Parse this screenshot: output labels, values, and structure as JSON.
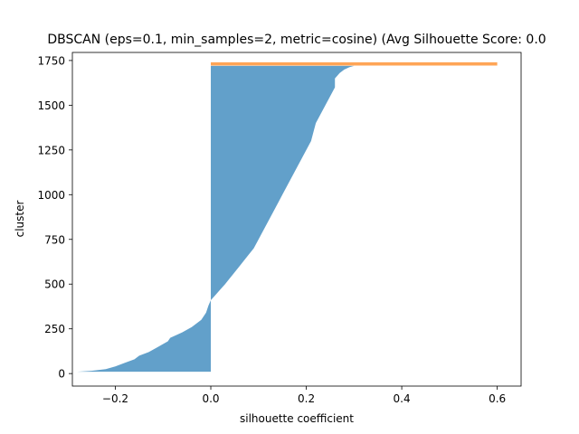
{
  "chart_data": {
    "type": "area",
    "title": "DBSCAN (eps=0.1, min_samples=2, metric=cosine) (Avg Silhouette Score: 0.0",
    "xlabel": "silhouette coefficient",
    "ylabel": "cluster",
    "xlim": [
      -0.29,
      0.65
    ],
    "ylim": [
      -70,
      1795
    ],
    "xticks": [
      -0.2,
      0.0,
      0.2,
      0.4,
      0.6
    ],
    "xtick_labels": [
      "−0.2",
      "0.0",
      "0.2",
      "0.4",
      "0.6"
    ],
    "yticks": [
      0,
      250,
      500,
      750,
      1000,
      1250,
      1500,
      1750
    ],
    "ytick_labels": [
      "0",
      "250",
      "500",
      "750",
      "1000",
      "1250",
      "1500",
      "1750"
    ],
    "grid": false,
    "series": [
      {
        "color": "#1f77b4",
        "opacity": 0.7,
        "y_range": [
          10,
          1720
        ],
        "profile_y": [
          10,
          15,
          25,
          40,
          60,
          80,
          100,
          120,
          150,
          180,
          200,
          230,
          260,
          300,
          340,
          380,
          410,
          440,
          470,
          500,
          550,
          600,
          650,
          700,
          750,
          800,
          850,
          900,
          950,
          1000,
          1100,
          1200,
          1250,
          1300,
          1350,
          1400,
          1450,
          1500,
          1550,
          1600,
          1650,
          1680,
          1700,
          1712,
          1720
        ],
        "profile_x": [
          -0.28,
          -0.25,
          -0.22,
          -0.2,
          -0.18,
          -0.16,
          -0.15,
          -0.13,
          -0.11,
          -0.09,
          -0.085,
          -0.06,
          -0.04,
          -0.02,
          -0.01,
          -0.005,
          0.0,
          0.01,
          0.02,
          0.03,
          0.045,
          0.06,
          0.075,
          0.09,
          0.1,
          0.11,
          0.12,
          0.13,
          0.14,
          0.15,
          0.17,
          0.19,
          0.2,
          0.21,
          0.215,
          0.22,
          0.23,
          0.24,
          0.25,
          0.26,
          0.26,
          0.27,
          0.28,
          0.29,
          0.3
        ]
      },
      {
        "color": "#ff7f0e",
        "opacity": 0.7,
        "y_range": [
          1722,
          1740
        ],
        "profile_y": [
          1722,
          1740
        ],
        "profile_x": [
          0.6,
          0.6
        ]
      }
    ]
  }
}
